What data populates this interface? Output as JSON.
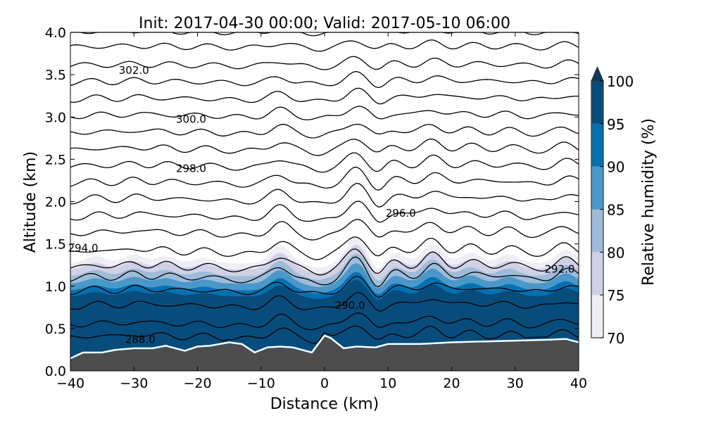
{
  "chart_data": {
    "type": "contourf",
    "title": "Init: 2017-04-30 00:00; Valid: 2017-05-10 06:00",
    "xlabel": "Distance (km)",
    "ylabel": "Altitude (km)",
    "xlim": [
      -40,
      40
    ],
    "ylim": [
      0,
      4
    ],
    "xticks": [
      -40,
      -30,
      -20,
      -10,
      0,
      10,
      20,
      30,
      40
    ],
    "xtick_labels": [
      "−40",
      "−30",
      "−20",
      "−10",
      "0",
      "10",
      "20",
      "30",
      "40"
    ],
    "yticks": [
      0,
      0.5,
      1,
      1.5,
      2,
      2.5,
      3,
      3.5,
      4
    ],
    "ytick_labels": [
      "0.0",
      "0.5",
      "1.0",
      "1.5",
      "2.0",
      "2.5",
      "3.0",
      "3.5",
      "4.0"
    ],
    "colorbar": {
      "label": "Relative humidity (%)",
      "levels": [
        70,
        75,
        80,
        85,
        90,
        95,
        100
      ],
      "tick_labels": [
        "70",
        "75",
        "80",
        "85",
        "90",
        "95",
        "100"
      ],
      "colors": [
        "#efedf5",
        "#d0d1e6",
        "#9ebcda",
        "#4a98c9",
        "#0570b0",
        "#084c7c"
      ],
      "extend_color": "#0b3a5c",
      "extend": "max"
    },
    "terrain": {
      "color": "#4d4d4d",
      "x": [
        -40,
        -38,
        -35,
        -33,
        -30,
        -27,
        -25,
        -22,
        -20,
        -18,
        -15,
        -13,
        -11,
        -9,
        -7,
        -5,
        -2,
        0,
        1,
        3,
        5,
        8,
        10,
        12,
        15,
        20,
        25,
        30,
        35,
        38,
        40
      ],
      "height_km": [
        0.13,
        0.2,
        0.2,
        0.23,
        0.25,
        0.25,
        0.28,
        0.22,
        0.27,
        0.28,
        0.32,
        0.3,
        0.2,
        0.26,
        0.27,
        0.26,
        0.2,
        0.4,
        0.37,
        0.25,
        0.27,
        0.26,
        0.3,
        0.3,
        0.3,
        0.32,
        0.33,
        0.34,
        0.35,
        0.36,
        0.32
      ]
    },
    "contour_labels": [
      {
        "text": "288.0",
        "x": -29,
        "y": 0.38
      },
      {
        "text": "290.0",
        "x": 4,
        "y": 0.78
      },
      {
        "text": "292.0",
        "x": 37,
        "y": 1.21
      },
      {
        "text": "294.0",
        "x": -38,
        "y": 1.46
      },
      {
        "text": "296.0",
        "x": 12,
        "y": 1.87
      },
      {
        "text": "298.0",
        "x": -21,
        "y": 2.4
      },
      {
        "text": "300.0",
        "x": -21,
        "y": 2.98
      },
      {
        "text": "302.0",
        "x": -30,
        "y": 3.56
      }
    ]
  }
}
